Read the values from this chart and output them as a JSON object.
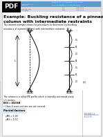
{
  "bg_color": "#e8e8e8",
  "page_bg": "#ffffff",
  "title": "Example: Buckling resistance of a pinned\ncolumn with intermediate restraints",
  "subtitle": "This worked example shows the procedures to determine the buckling\nresistance of a pinned column with intermediate restraints.",
  "pdf_label": "PDF",
  "body_text1": "The column is a rolled IPE profile which is laterally restrained every\n1.5 metres.",
  "body_text2": "NEd = 1000kN",
  "body_text3": "• Class 4 cross sections are not covered.",
  "bullet_header": "Partial factors",
  "bullet1": "γM0 = 1.00",
  "bullet2": "γM1 = 1.00",
  "right_ref_line1": "EN 1993-1-1",
  "right_ref_line2": "6.3.1 (3)",
  "diagram_left_label": "N₀⁻",
  "diagram_right_label": "N₀⁻",
  "col_height_label": "L",
  "col_segments": 4,
  "left_vertical_text": "SCI | Delivering excellence in steel",
  "header_blue": "#5b9bd5",
  "header_grey": "#d9d9d9",
  "header_light_blue": "#dce6f1",
  "ref_color": "#1f4e79",
  "bullet_bg": "#dce6f1"
}
